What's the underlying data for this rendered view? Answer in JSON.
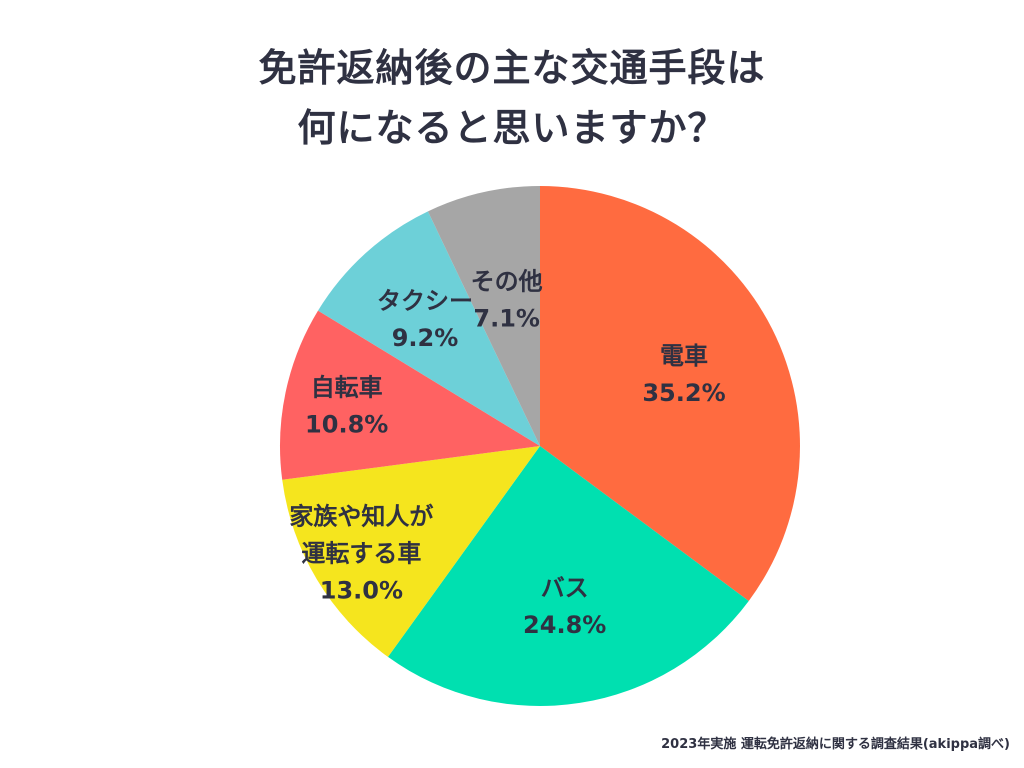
{
  "title": {
    "line1": "免許返納後の主な交通手段は",
    "line2": "何になると思いますか？"
  },
  "footnote": "2023年実施 運転免許返納に関する調査結果(akippa調べ)",
  "chart_data": {
    "type": "pie",
    "title": "免許返納後の主な交通手段は何になると思いますか？",
    "start": "12 o'clock, clockwise",
    "unit": "%",
    "slices": [
      {
        "label_lines": [
          "電車"
        ],
        "value": 35.2,
        "value_text": "35.2%",
        "color": "#ff6b40"
      },
      {
        "label_lines": [
          "バス"
        ],
        "value": 24.8,
        "value_text": "24.8%",
        "color": "#00e0b0"
      },
      {
        "label_lines": [
          "家族や知人が",
          "運転する車"
        ],
        "value": 13.0,
        "value_text": "13.0%",
        "color": "#f5e51e"
      },
      {
        "label_lines": [
          "自転車"
        ],
        "value": 10.8,
        "value_text": "10.8%",
        "color": "#ff6262"
      },
      {
        "label_lines": [
          "タクシー"
        ],
        "value": 9.2,
        "value_text": "9.2%",
        "color": "#6dd0d8"
      },
      {
        "label_lines": [
          "その他"
        ],
        "value": 7.1,
        "value_text": "7.1%",
        "color": "#a6a6a6"
      }
    ]
  }
}
